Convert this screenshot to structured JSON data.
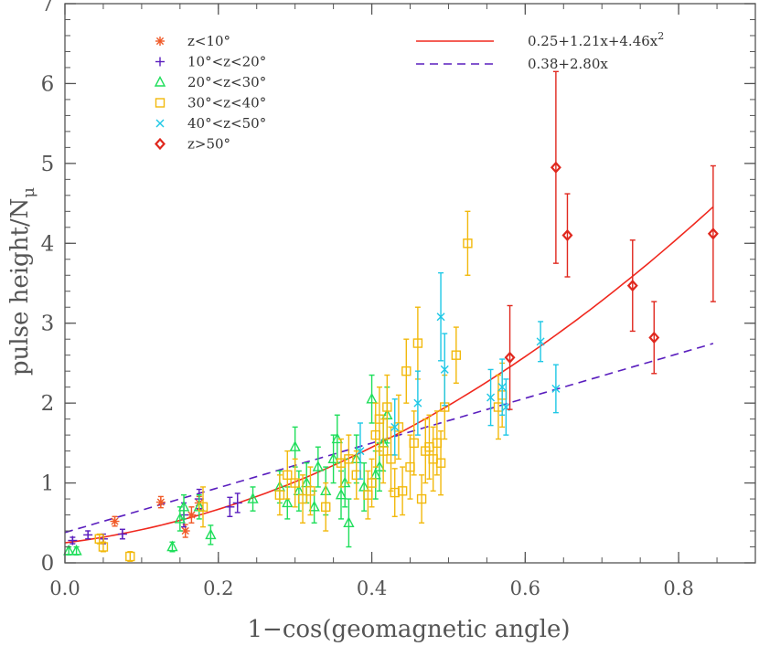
{
  "chart_data": {
    "type": "scatter",
    "xlabel": "1−cos(geomagnetic angle)",
    "ylabel_main": "pulse height/N",
    "ylabel_sub": "μ",
    "xlim": [
      0.0,
      0.9
    ],
    "ylim": [
      0,
      7
    ],
    "xticks": [
      "0.0",
      "0.2",
      "0.4",
      "0.6",
      "0.8"
    ],
    "xtick_values": [
      0.0,
      0.2,
      0.4,
      0.6,
      0.8
    ],
    "yticks": [
      "0",
      "1",
      "2",
      "3",
      "4",
      "5",
      "6",
      "7"
    ],
    "ytick_values": [
      0,
      1,
      2,
      3,
      4,
      5,
      6,
      7
    ],
    "legend_position": "top-left",
    "series": [
      {
        "name": "z<10°",
        "marker": "asterisk",
        "color": "#f05a28",
        "points": [
          {
            "x": 0.065,
            "y": 0.52,
            "err": 0.06
          },
          {
            "x": 0.125,
            "y": 0.76,
            "err": 0.07
          },
          {
            "x": 0.157,
            "y": 0.4,
            "err": 0.08
          },
          {
            "x": 0.165,
            "y": 0.6,
            "err": 0.1
          },
          {
            "x": 0.175,
            "y": 0.75,
            "err": 0.08
          }
        ]
      },
      {
        "name": "10°<z<20°",
        "marker": "plus",
        "color": "#5a1ebe",
        "points": [
          {
            "x": 0.01,
            "y": 0.28,
            "err": 0.04
          },
          {
            "x": 0.03,
            "y": 0.35,
            "err": 0.05
          },
          {
            "x": 0.05,
            "y": 0.3,
            "err": 0.06
          },
          {
            "x": 0.075,
            "y": 0.36,
            "err": 0.06
          },
          {
            "x": 0.155,
            "y": 0.6,
            "err": 0.15
          },
          {
            "x": 0.175,
            "y": 0.8,
            "err": 0.12
          },
          {
            "x": 0.215,
            "y": 0.7,
            "err": 0.12
          },
          {
            "x": 0.225,
            "y": 0.75,
            "err": 0.12
          }
        ]
      },
      {
        "name": "20°<z<30°",
        "marker": "triangle",
        "color": "#1ede5a",
        "points": [
          {
            "x": 0.005,
            "y": 0.15,
            "err": 0.05
          },
          {
            "x": 0.015,
            "y": 0.15,
            "err": 0.05
          },
          {
            "x": 0.14,
            "y": 0.2,
            "err": 0.06
          },
          {
            "x": 0.15,
            "y": 0.55,
            "err": 0.15
          },
          {
            "x": 0.155,
            "y": 0.7,
            "err": 0.15
          },
          {
            "x": 0.175,
            "y": 0.7,
            "err": 0.15
          },
          {
            "x": 0.19,
            "y": 0.35,
            "err": 0.12
          },
          {
            "x": 0.245,
            "y": 0.8,
            "err": 0.15
          },
          {
            "x": 0.28,
            "y": 0.95,
            "err": 0.2
          },
          {
            "x": 0.29,
            "y": 0.75,
            "err": 0.2
          },
          {
            "x": 0.3,
            "y": 1.45,
            "err": 0.25
          },
          {
            "x": 0.305,
            "y": 0.9,
            "err": 0.25
          },
          {
            "x": 0.315,
            "y": 1.0,
            "err": 0.25
          },
          {
            "x": 0.325,
            "y": 0.7,
            "err": 0.2
          },
          {
            "x": 0.33,
            "y": 1.2,
            "err": 0.25
          },
          {
            "x": 0.34,
            "y": 0.9,
            "err": 0.3
          },
          {
            "x": 0.35,
            "y": 1.3,
            "err": 0.3
          },
          {
            "x": 0.355,
            "y": 1.55,
            "err": 0.3
          },
          {
            "x": 0.36,
            "y": 0.85,
            "err": 0.3
          },
          {
            "x": 0.365,
            "y": 1.0,
            "err": 0.3
          },
          {
            "x": 0.37,
            "y": 0.5,
            "err": 0.3
          },
          {
            "x": 0.38,
            "y": 1.3,
            "err": 0.3
          },
          {
            "x": 0.39,
            "y": 0.95,
            "err": 0.3
          },
          {
            "x": 0.4,
            "y": 2.05,
            "err": 0.3
          },
          {
            "x": 0.405,
            "y": 1.1,
            "err": 0.3
          },
          {
            "x": 0.41,
            "y": 1.2,
            "err": 0.3
          },
          {
            "x": 0.415,
            "y": 1.5,
            "err": 0.35
          },
          {
            "x": 0.42,
            "y": 1.85,
            "err": 0.35
          }
        ]
      },
      {
        "name": "30°<z<40°",
        "marker": "square",
        "color": "#f2b90c",
        "points": [
          {
            "x": 0.045,
            "y": 0.3,
            "err": 0.06
          },
          {
            "x": 0.05,
            "y": 0.2,
            "err": 0.06
          },
          {
            "x": 0.085,
            "y": 0.08,
            "err": 0.06
          },
          {
            "x": 0.18,
            "y": 0.7,
            "err": 0.25
          },
          {
            "x": 0.28,
            "y": 0.85,
            "err": 0.25
          },
          {
            "x": 0.29,
            "y": 1.1,
            "err": 0.3
          },
          {
            "x": 0.3,
            "y": 1.0,
            "err": 0.3
          },
          {
            "x": 0.31,
            "y": 0.8,
            "err": 0.3
          },
          {
            "x": 0.32,
            "y": 0.9,
            "err": 0.3
          },
          {
            "x": 0.34,
            "y": 0.7,
            "err": 0.3
          },
          {
            "x": 0.36,
            "y": 1.25,
            "err": 0.3
          },
          {
            "x": 0.37,
            "y": 1.3,
            "err": 0.3
          },
          {
            "x": 0.38,
            "y": 1.1,
            "err": 0.3
          },
          {
            "x": 0.395,
            "y": 0.85,
            "err": 0.3
          },
          {
            "x": 0.4,
            "y": 1.0,
            "err": 0.3
          },
          {
            "x": 0.405,
            "y": 1.6,
            "err": 0.4
          },
          {
            "x": 0.41,
            "y": 1.8,
            "err": 0.4
          },
          {
            "x": 0.415,
            "y": 1.4,
            "err": 0.4
          },
          {
            "x": 0.42,
            "y": 1.95,
            "err": 0.4
          },
          {
            "x": 0.425,
            "y": 1.3,
            "err": 0.4
          },
          {
            "x": 0.43,
            "y": 0.88,
            "err": 0.3
          },
          {
            "x": 0.435,
            "y": 1.7,
            "err": 0.4
          },
          {
            "x": 0.44,
            "y": 0.9,
            "err": 0.3
          },
          {
            "x": 0.445,
            "y": 2.4,
            "err": 0.4
          },
          {
            "x": 0.45,
            "y": 1.2,
            "err": 0.4
          },
          {
            "x": 0.455,
            "y": 1.5,
            "err": 0.4
          },
          {
            "x": 0.46,
            "y": 2.75,
            "err": 0.45
          },
          {
            "x": 0.465,
            "y": 0.8,
            "err": 0.3
          },
          {
            "x": 0.47,
            "y": 1.4,
            "err": 0.4
          },
          {
            "x": 0.475,
            "y": 1.45,
            "err": 0.4
          },
          {
            "x": 0.48,
            "y": 1.3,
            "err": 0.4
          },
          {
            "x": 0.485,
            "y": 1.5,
            "err": 0.4
          },
          {
            "x": 0.49,
            "y": 1.25,
            "err": 0.4
          },
          {
            "x": 0.495,
            "y": 1.95,
            "err": 0.4
          },
          {
            "x": 0.51,
            "y": 2.6,
            "err": 0.35
          },
          {
            "x": 0.525,
            "y": 4.0,
            "err": 0.4
          },
          {
            "x": 0.565,
            "y": 1.95,
            "err": 0.4
          },
          {
            "x": 0.57,
            "y": 2.1,
            "err": 0.4
          }
        ]
      },
      {
        "name": "40°<z<50°",
        "marker": "cross",
        "color": "#1ec8e6",
        "points": [
          {
            "x": 0.385,
            "y": 1.4,
            "err": 0.35
          },
          {
            "x": 0.43,
            "y": 1.7,
            "err": 0.35
          },
          {
            "x": 0.46,
            "y": 2.0,
            "err": 0.4
          },
          {
            "x": 0.49,
            "y": 3.08,
            "err": 0.55
          },
          {
            "x": 0.495,
            "y": 2.42,
            "err": 0.45
          },
          {
            "x": 0.555,
            "y": 2.07,
            "err": 0.35
          },
          {
            "x": 0.57,
            "y": 2.2,
            "err": 0.35
          },
          {
            "x": 0.575,
            "y": 1.95,
            "err": 0.35
          },
          {
            "x": 0.62,
            "y": 2.77,
            "err": 0.25
          },
          {
            "x": 0.64,
            "y": 2.18,
            "err": 0.3
          }
        ]
      },
      {
        "name": "z>50°",
        "marker": "diamond",
        "color": "#e0281e",
        "points": [
          {
            "x": 0.58,
            "y": 2.57,
            "err": 0.65
          },
          {
            "x": 0.64,
            "y": 4.95,
            "err": 1.2
          },
          {
            "x": 0.655,
            "y": 4.1,
            "err": 0.52
          },
          {
            "x": 0.74,
            "y": 3.47,
            "err": 0.57
          },
          {
            "x": 0.768,
            "y": 2.82,
            "err": 0.45
          },
          {
            "x": 0.845,
            "y": 4.12,
            "err": 0.85
          }
        ]
      }
    ],
    "fits": [
      {
        "label": "0.25+1.21x+4.46x",
        "label_sup": "2",
        "coefficients": [
          0.25,
          1.21,
          4.46
        ],
        "style": "solid",
        "color": "#f0281e",
        "range": [
          0.0,
          0.845
        ]
      },
      {
        "label": "0.38+2.80x",
        "label_sup": "",
        "coefficients": [
          0.38,
          2.8
        ],
        "style": "dashed",
        "color": "#5a1ebe",
        "range": [
          0.0,
          0.845
        ]
      }
    ]
  }
}
